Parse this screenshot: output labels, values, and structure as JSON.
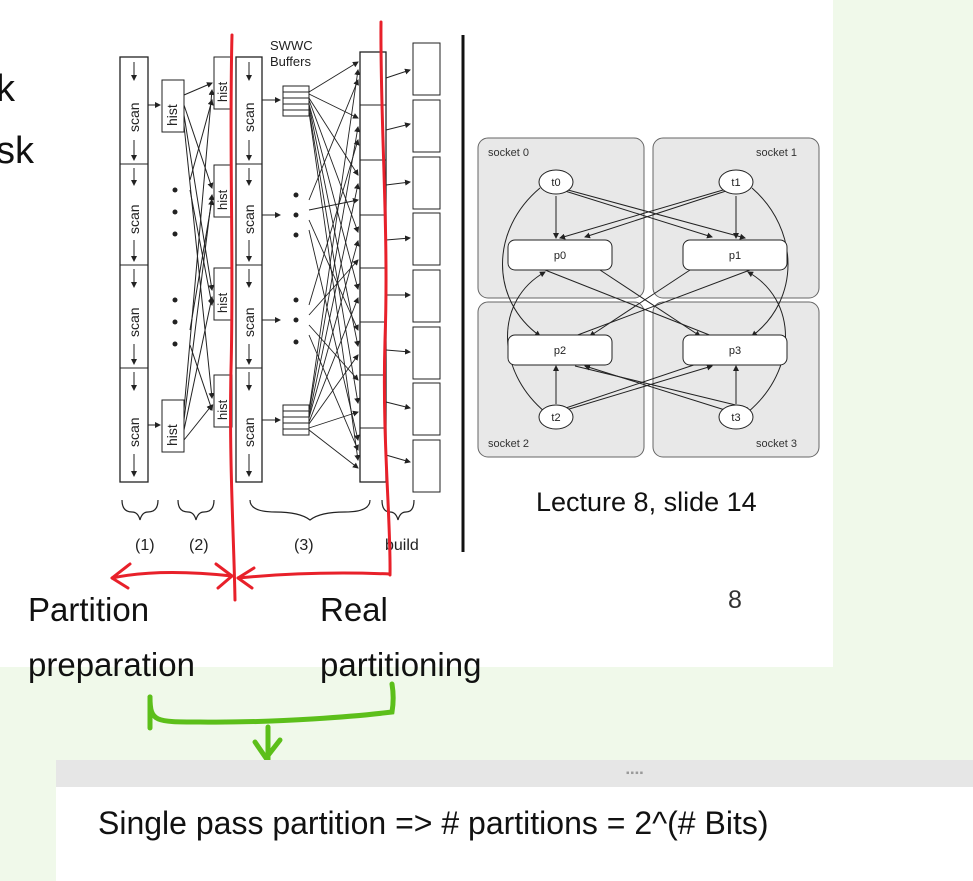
{
  "slide": {
    "title_fragment": "",
    "left_fragments": [
      "k",
      "sk"
    ],
    "swwc_label_line1": "SWWC",
    "swwc_label_line2": "Buffers",
    "scan_label": "scan",
    "hist_label": "hist",
    "stage_labels": [
      "(1)",
      "(2)",
      "(3)",
      "build"
    ],
    "sockets": [
      "socket 0",
      "socket 1",
      "socket 2",
      "socket 3"
    ],
    "threads": [
      "t0",
      "t1",
      "t2",
      "t3"
    ],
    "partitions": [
      "p0",
      "p1",
      "p2",
      "p3"
    ],
    "caption": "Lecture 8, slide 14",
    "page_number": "8"
  },
  "annotations": {
    "left_label_line1": "Partition",
    "left_label_line2": "preparation",
    "right_label_line1": "Real",
    "right_label_line2": "partitioning",
    "red_color": "#e8202a",
    "green_color": "#5cbf1a"
  },
  "note": {
    "grip_icon": "drag-handle-icon",
    "text": "Single pass partition => # partitions = 2^(# Bits)"
  }
}
